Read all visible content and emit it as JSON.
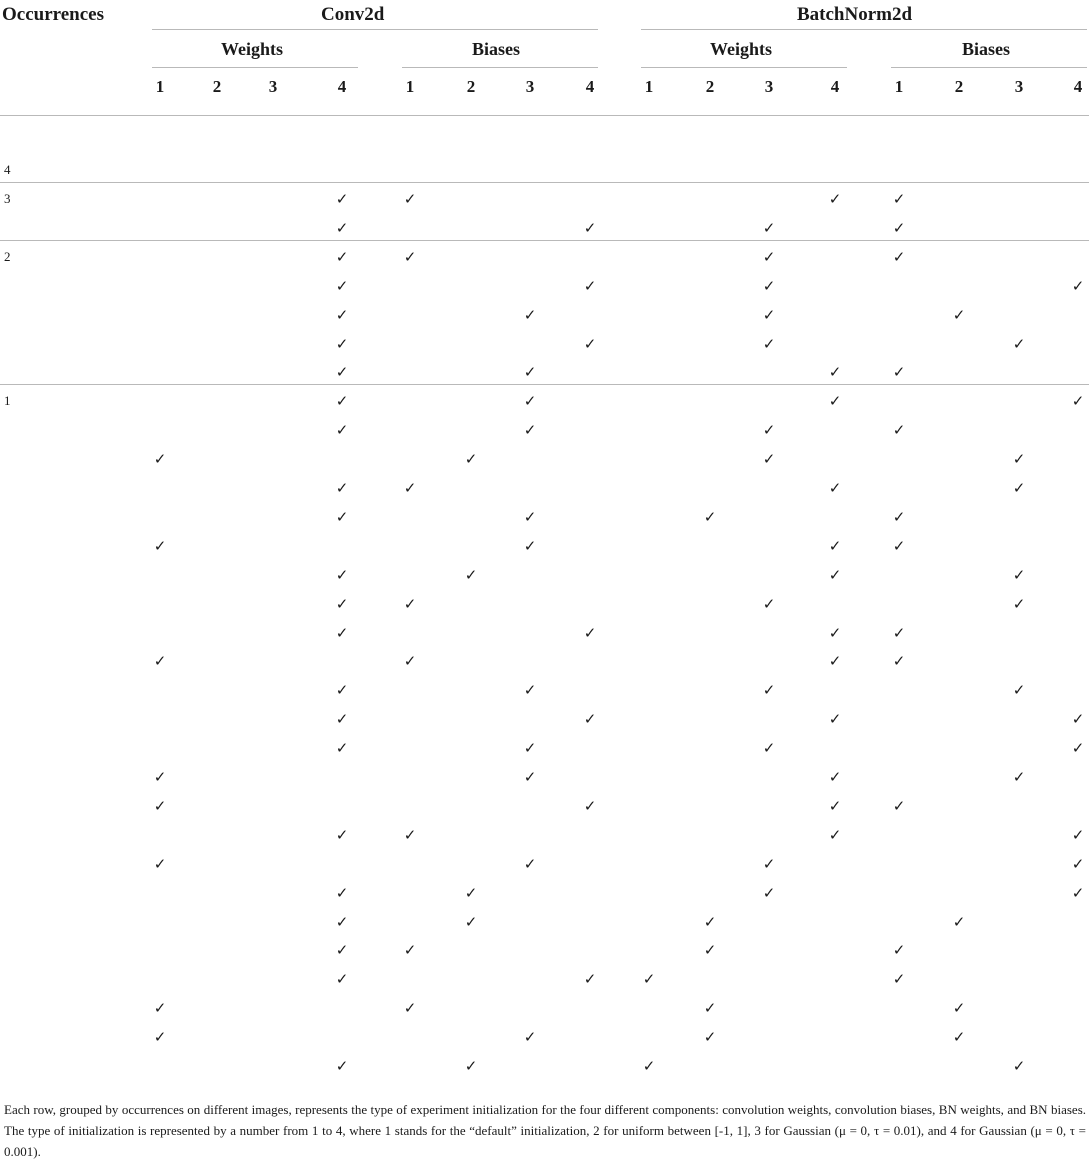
{
  "header": {
    "occurrences": "Occurrences",
    "conv": "Conv2d",
    "bn": "BatchNorm2d",
    "conv_weights": "Weights",
    "conv_biases": "Biases",
    "bn_weights": "Weights",
    "bn_biases": "Biases",
    "col_numbers": [
      "1",
      "2",
      "3",
      "4",
      "1",
      "2",
      "3",
      "4",
      "1",
      "2",
      "3",
      "4",
      "1",
      "2",
      "3",
      "4"
    ]
  },
  "check_symbol": "✓",
  "groups": [
    {
      "label": "4",
      "rows": []
    },
    {
      "label": "3",
      "rows": [
        [
          4,
          1,
          4,
          1
        ],
        [
          4,
          4,
          3,
          1
        ]
      ]
    },
    {
      "label": "2",
      "rows": [
        [
          4,
          1,
          3,
          1
        ],
        [
          4,
          4,
          3,
          4
        ],
        [
          4,
          3,
          3,
          2
        ],
        [
          4,
          4,
          3,
          3
        ],
        [
          4,
          3,
          4,
          1
        ]
      ]
    },
    {
      "label": "1",
      "rows": [
        [
          4,
          3,
          4,
          4
        ],
        [
          4,
          3,
          3,
          1
        ],
        [
          1,
          2,
          3,
          3
        ],
        [
          4,
          1,
          4,
          3
        ],
        [
          4,
          3,
          2,
          1
        ],
        [
          1,
          3,
          4,
          1
        ],
        [
          4,
          2,
          4,
          3
        ],
        [
          4,
          1,
          3,
          3
        ],
        [
          4,
          4,
          4,
          1
        ],
        [
          1,
          1,
          4,
          1
        ],
        [
          4,
          3,
          3,
          3
        ],
        [
          4,
          4,
          4,
          4
        ],
        [
          4,
          3,
          3,
          4
        ],
        [
          1,
          3,
          4,
          3
        ],
        [
          1,
          4,
          4,
          1
        ],
        [
          4,
          1,
          4,
          4
        ],
        [
          1,
          3,
          3,
          4
        ],
        [
          4,
          2,
          3,
          4
        ],
        [
          4,
          2,
          2,
          2
        ],
        [
          4,
          1,
          2,
          1
        ],
        [
          4,
          4,
          1,
          1
        ],
        [
          1,
          1,
          2,
          2
        ],
        [
          1,
          3,
          2,
          2
        ],
        [
          4,
          2,
          1,
          3
        ]
      ]
    }
  ],
  "caption": "Each row, grouped by occurrences on different images, represents the type of experiment initialization for the four different components: convolution weights, convolution biases, BN weights, and BN biases. The type of initialization is represented by a number from 1 to 4, where 1 stands for the “default” initialization, 2 for uniform between [-1, 1], 3 for Gaussian (μ = 0, τ = 0.01), and 4 for Gaussian (μ = 0, τ = 0.001)."
}
